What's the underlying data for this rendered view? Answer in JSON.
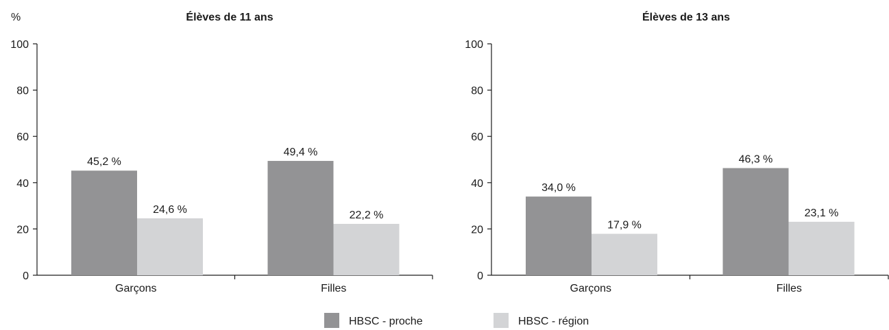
{
  "unit_label": "%",
  "colors": {
    "proche": "#939395",
    "region": "#d3d4d6",
    "axis": "#1a1a1a"
  },
  "legend": {
    "placement": "bottom-center",
    "items": [
      {
        "label": "HBSC - proche",
        "color": "#939395"
      },
      {
        "label": "HBSC - région",
        "color": "#d3d4d6"
      }
    ]
  },
  "chart_data": [
    {
      "type": "bar",
      "title": "Élèves de 11 ans",
      "ylabel": "%",
      "ylim": [
        0,
        100
      ],
      "yticks": [
        0,
        20,
        40,
        60,
        80,
        100
      ],
      "categories": [
        "Garçons",
        "Filles"
      ],
      "series": [
        {
          "name": "HBSC - proche",
          "values": [
            45.2,
            49.4
          ],
          "labels": [
            "45,2 %",
            "49,4 %"
          ]
        },
        {
          "name": "HBSC - région",
          "values": [
            24.6,
            22.2
          ],
          "labels": [
            "24,6 %",
            "22,2 %"
          ]
        }
      ],
      "grid": false
    },
    {
      "type": "bar",
      "title": "Élèves de 13 ans",
      "ylabel": "",
      "ylim": [
        0,
        100
      ],
      "yticks": [
        0,
        20,
        40,
        60,
        80,
        100
      ],
      "categories": [
        "Garçons",
        "Filles"
      ],
      "series": [
        {
          "name": "HBSC - proche",
          "values": [
            34.0,
            46.3
          ],
          "labels": [
            "34,0 %",
            "46,3 %"
          ]
        },
        {
          "name": "HBSC - région",
          "values": [
            17.9,
            23.1
          ],
          "labels": [
            "17,9 %",
            "23,1 %"
          ]
        }
      ],
      "grid": false
    }
  ]
}
